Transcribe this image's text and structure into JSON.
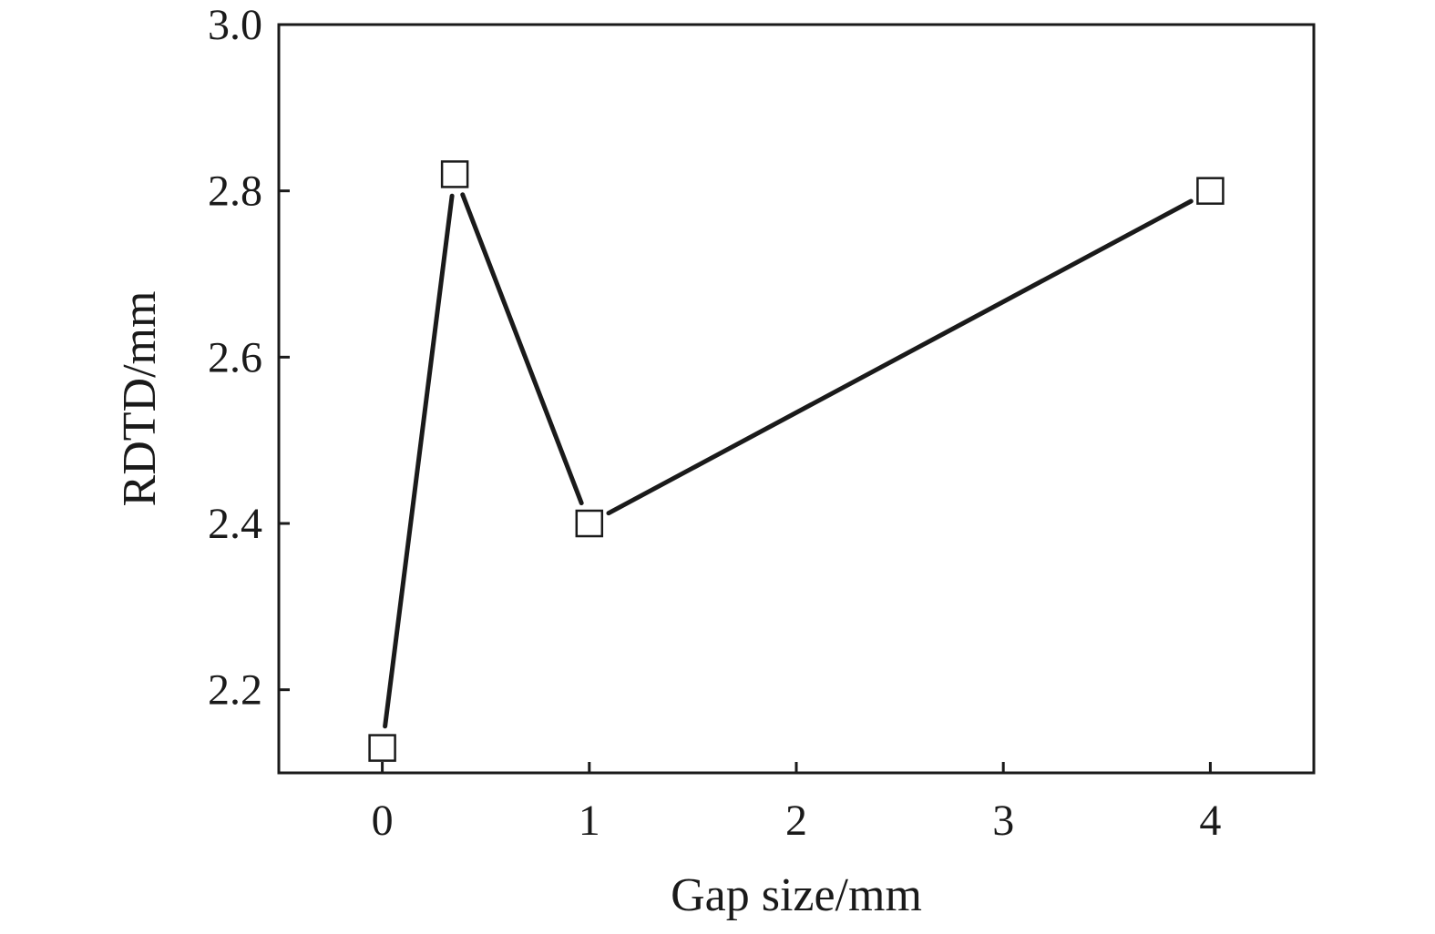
{
  "chart_data": {
    "type": "line",
    "title": "",
    "xlabel": "Gap size/mm",
    "ylabel": "RDTD/mm",
    "xlim": [
      -0.5,
      4.5
    ],
    "ylim": [
      2.1,
      3.0
    ],
    "xticks": [
      0,
      1,
      2,
      3,
      4
    ],
    "xtick_labels": [
      "0",
      "1",
      "2",
      "3",
      "4"
    ],
    "yticks": [
      2.2,
      2.4,
      2.6,
      2.8,
      3.0
    ],
    "ytick_labels": [
      "2.2",
      "2.4",
      "2.6",
      "2.8",
      "3.0"
    ],
    "grid": false,
    "legend": "none",
    "marker": "open-square",
    "line_color": "#1a1a1a",
    "series": [
      {
        "x": [
          0,
          0.35,
          1,
          4
        ],
        "y": [
          2.13,
          2.82,
          2.4,
          2.8
        ]
      }
    ]
  }
}
